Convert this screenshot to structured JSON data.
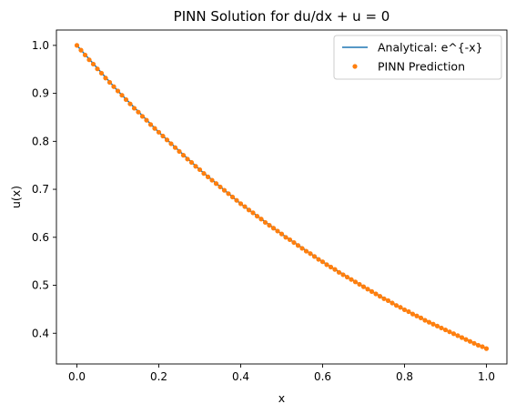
{
  "chart_data": {
    "type": "line",
    "title": "PINN Solution for du/dx + u = 0",
    "xlabel": "x",
    "ylabel": "u(x)",
    "xlim": [
      -0.05,
      1.05
    ],
    "ylim": [
      0.336,
      1.032
    ],
    "xticks": [
      0.0,
      0.2,
      0.4,
      0.6,
      0.8,
      1.0
    ],
    "xtick_labels": [
      "0.0",
      "0.2",
      "0.4",
      "0.6",
      "0.8",
      "1.0"
    ],
    "yticks": [
      0.4,
      0.5,
      0.6,
      0.7,
      0.8,
      0.9,
      1.0
    ],
    "ytick_labels": [
      "0.4",
      "0.5",
      "0.6",
      "0.7",
      "0.8",
      "0.9",
      "1.0"
    ],
    "grid": false,
    "legend_position": "top-right",
    "series": [
      {
        "name": "Analytical: e^{-x}",
        "style": "line",
        "color": "#1f77b4",
        "x": [
          0.0,
          0.1,
          0.2,
          0.3,
          0.4,
          0.5,
          0.6,
          0.7,
          0.8,
          0.9,
          1.0
        ],
        "y": [
          1.0,
          0.905,
          0.819,
          0.741,
          0.67,
          0.607,
          0.549,
          0.497,
          0.449,
          0.407,
          0.368
        ]
      },
      {
        "name": "PINN Prediction",
        "style": "markers",
        "color": "#ff7f0e",
        "x": [
          0.0,
          0.01,
          0.02,
          0.03,
          0.04,
          0.05,
          0.06,
          0.07,
          0.08,
          0.09,
          0.1,
          0.11,
          0.12,
          0.13,
          0.14,
          0.15,
          0.16,
          0.17,
          0.18,
          0.19,
          0.2,
          0.21,
          0.22,
          0.23,
          0.24,
          0.25,
          0.26,
          0.27,
          0.28,
          0.29,
          0.3,
          0.31,
          0.32,
          0.33,
          0.34,
          0.35,
          0.36,
          0.37,
          0.38,
          0.39,
          0.4,
          0.41,
          0.42,
          0.43,
          0.44,
          0.45,
          0.46,
          0.47,
          0.48,
          0.49,
          0.5,
          0.51,
          0.52,
          0.53,
          0.54,
          0.55,
          0.56,
          0.57,
          0.58,
          0.59,
          0.6,
          0.61,
          0.62,
          0.63,
          0.64,
          0.65,
          0.66,
          0.67,
          0.68,
          0.69,
          0.7,
          0.71,
          0.72,
          0.73,
          0.74,
          0.75,
          0.76,
          0.77,
          0.78,
          0.79,
          0.8,
          0.81,
          0.82,
          0.83,
          0.84,
          0.85,
          0.86,
          0.87,
          0.88,
          0.89,
          0.9,
          0.91,
          0.92,
          0.93,
          0.94,
          0.95,
          0.96,
          0.97,
          0.98,
          0.99,
          1.0
        ],
        "y": [
          1.0,
          0.99,
          0.98,
          0.97,
          0.961,
          0.951,
          0.942,
          0.932,
          0.923,
          0.914,
          0.905,
          0.896,
          0.887,
          0.878,
          0.869,
          0.861,
          0.852,
          0.844,
          0.835,
          0.827,
          0.819,
          0.811,
          0.803,
          0.795,
          0.787,
          0.779,
          0.771,
          0.763,
          0.756,
          0.748,
          0.741,
          0.733,
          0.726,
          0.719,
          0.712,
          0.705,
          0.698,
          0.691,
          0.684,
          0.677,
          0.67,
          0.664,
          0.657,
          0.651,
          0.644,
          0.638,
          0.631,
          0.625,
          0.619,
          0.613,
          0.607,
          0.6,
          0.595,
          0.589,
          0.583,
          0.577,
          0.571,
          0.566,
          0.56,
          0.554,
          0.549,
          0.543,
          0.538,
          0.533,
          0.527,
          0.522,
          0.517,
          0.512,
          0.507,
          0.502,
          0.497,
          0.492,
          0.487,
          0.482,
          0.477,
          0.472,
          0.468,
          0.463,
          0.458,
          0.454,
          0.449,
          0.445,
          0.44,
          0.436,
          0.432,
          0.427,
          0.423,
          0.419,
          0.415,
          0.411,
          0.407,
          0.403,
          0.399,
          0.395,
          0.391,
          0.387,
          0.383,
          0.379,
          0.375,
          0.372,
          0.368
        ]
      }
    ]
  }
}
